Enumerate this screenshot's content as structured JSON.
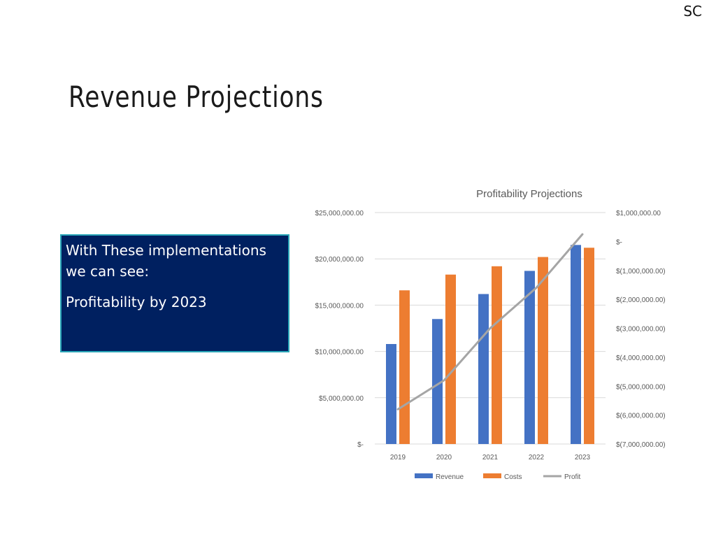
{
  "header": {
    "corner_mark": "SC"
  },
  "slide": {
    "title": "Revenue Projections",
    "callout_line1": "With These implementations we can see:",
    "callout_line2": "Profitability by 2023"
  },
  "chart_data": {
    "type": "bar",
    "title": "Profitability Projections",
    "categories": [
      "2019",
      "2020",
      "2021",
      "2022",
      "2023"
    ],
    "series": [
      {
        "name": "Revenue",
        "type": "bar",
        "axis": "left",
        "color": "#4472c4",
        "values": [
          10800000,
          13500000,
          16200000,
          18700000,
          21500000
        ]
      },
      {
        "name": "Costs",
        "type": "bar",
        "axis": "left",
        "color": "#ed7d31",
        "values": [
          16600000,
          18300000,
          19200000,
          20200000,
          21200000
        ]
      },
      {
        "name": "Profit",
        "type": "line",
        "axis": "right",
        "color": "#a5a5a5",
        "values": [
          -5800000,
          -4800000,
          -3000000,
          -1600000,
          250000
        ]
      }
    ],
    "left_axis": {
      "ylim": [
        0,
        25000000
      ],
      "ticks": [
        0,
        5000000,
        10000000,
        15000000,
        20000000,
        25000000
      ],
      "tick_labels": [
        "$-",
        "$5,000,000.00",
        "$10,000,000.00",
        "$15,000,000.00",
        "$20,000,000.00",
        "$25,000,000.00"
      ]
    },
    "right_axis": {
      "ylim": [
        -7000000,
        1000000
      ],
      "ticks": [
        -7000000,
        -6000000,
        -5000000,
        -4000000,
        -3000000,
        -2000000,
        -1000000,
        0,
        1000000
      ],
      "tick_labels": [
        "$(7,000,000.00)",
        "$(6,000,000.00)",
        "$(5,000,000.00)",
        "$(4,000,000.00)",
        "$(3,000,000.00)",
        "$(2,000,000.00)",
        "$(1,000,000.00)",
        "$-",
        "$1,000,000.00"
      ]
    },
    "grid": true,
    "legend": "bottom",
    "legend_entries": [
      "Revenue",
      "Costs",
      "Profit"
    ]
  }
}
